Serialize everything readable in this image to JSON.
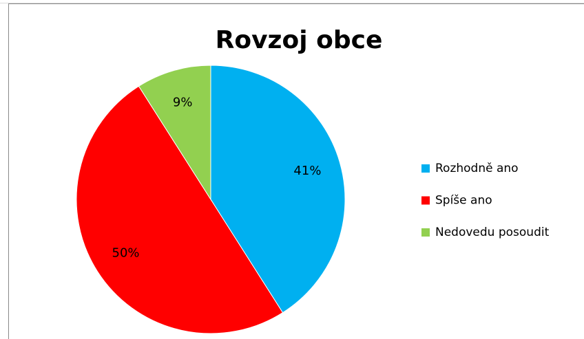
{
  "chart_data": {
    "type": "pie",
    "title": "Rovzoj obce",
    "categories": [
      "Rozhodně ano",
      "Spíše ano",
      "Nedovedu posoudit"
    ],
    "values": [
      41,
      50,
      9
    ],
    "value_labels": [
      "41%",
      "50%",
      "9%"
    ],
    "colors": [
      "#00b0f0",
      "#ff0000",
      "#92d050"
    ],
    "legend": "right"
  }
}
